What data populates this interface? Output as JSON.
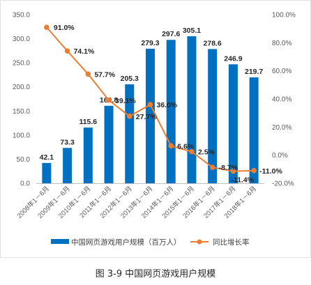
{
  "caption": "图 3-9  中国网页游戏用户规模",
  "chart_data": {
    "type": "bar",
    "categories": [
      "2008年1－6月",
      "2009年1－6月",
      "2010年1－6月",
      "2011年1－6月",
      "2012年1－6月",
      "2013年1－6月",
      "2014年1－6月",
      "2015年1－6月",
      "2016年1－6月",
      "2017年1－6月",
      "2018年1－6月"
    ],
    "series": [
      {
        "name": "中国网页游戏用户规模（百万人）",
        "type": "bar",
        "axis": "left",
        "color": "#0070c0",
        "values": [
          42.1,
          73.3,
          115.6,
          160.8,
          205.3,
          279.3,
          297.6,
          305.1,
          278.6,
          246.9,
          219.7
        ],
        "labels": [
          "42.1",
          "73.3",
          "115.6",
          "160.8",
          "205.3",
          "279.3",
          "297.6",
          "305.1",
          "278.6",
          "246.9",
          "219.7"
        ]
      },
      {
        "name": "同比增长率",
        "type": "line",
        "axis": "right",
        "color": "#ed7d31",
        "values": [
          91.0,
          74.1,
          57.7,
          39.1,
          27.7,
          36.0,
          6.6,
          2.5,
          -8.7,
          -11.4,
          -11.0
        ],
        "labels": [
          "91.0%",
          "74.1%",
          "57.7%",
          "39.1%",
          "27.7%",
          "36.0%",
          "6.6%",
          "2.5%",
          "-8.7%",
          "-11.4%",
          "-11.0%"
        ]
      }
    ],
    "y_left": {
      "lim": [
        0,
        350
      ],
      "ticks": [
        "0.0",
        "50.0",
        "100.0",
        "150.0",
        "200.0",
        "250.0",
        "300.0",
        "350.0"
      ]
    },
    "y_right": {
      "lim": [
        -20,
        100
      ],
      "ticks": [
        "-20.0%",
        "0.0%",
        "20.0%",
        "40.0%",
        "60.0%",
        "80.0%",
        "100.0%"
      ]
    },
    "grid": false,
    "legend_position": "bottom"
  }
}
